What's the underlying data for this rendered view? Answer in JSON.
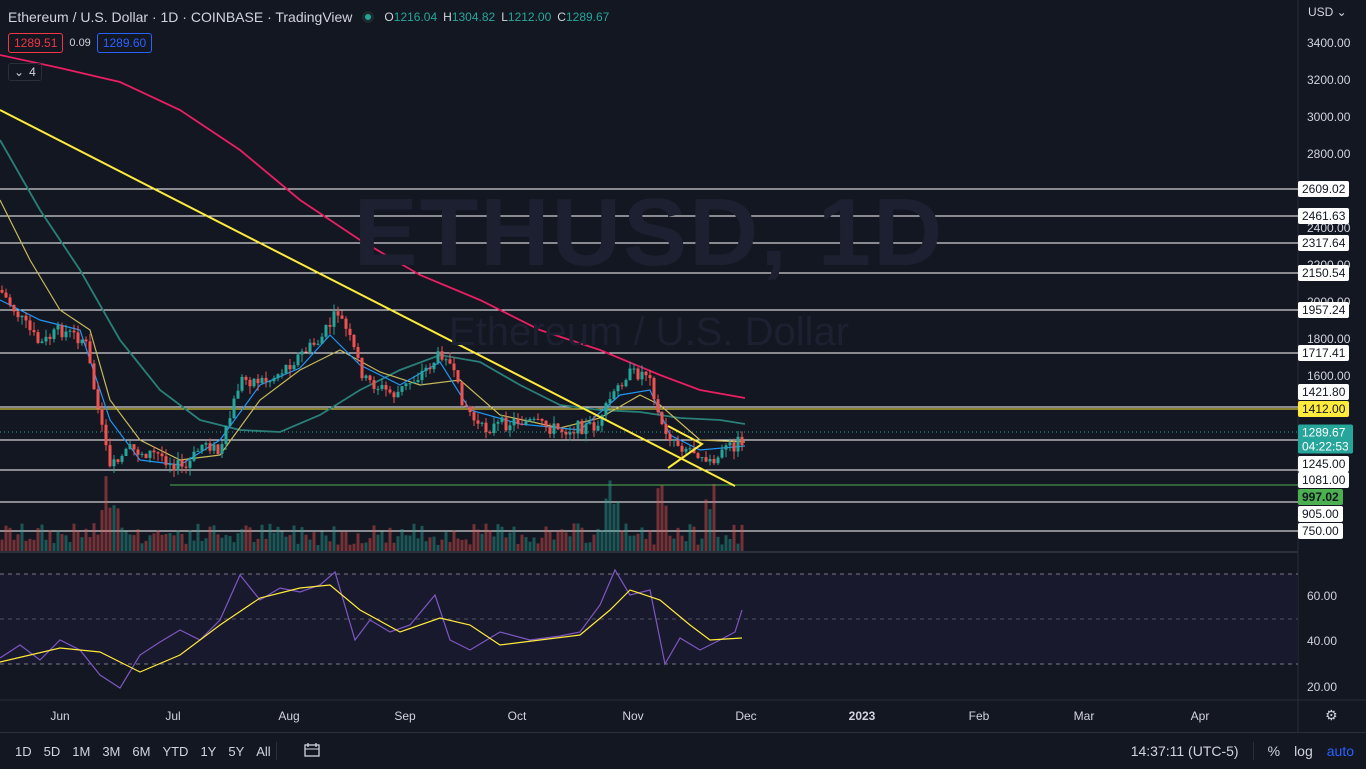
{
  "header": {
    "symbol_title": "Ethereum / U.S. Dollar · 1D · COINBASE · TradingView",
    "ohlc": [
      {
        "k": "O",
        "v": "1216.04"
      },
      {
        "k": "H",
        "v": "1304.82"
      },
      {
        "k": "L",
        "v": "1212.00"
      },
      {
        "k": "C",
        "v": "1289.67"
      }
    ]
  },
  "quote": {
    "sell": "1289.51",
    "spread": "0.09",
    "buy": "1289.60"
  },
  "indicators_toggle": {
    "count": "4"
  },
  "watermark": {
    "ticker": "ETHUSD, 1D",
    "name": "Ethereum / U.S. Dollar"
  },
  "price_axis": {
    "currency": "USD",
    "ticks": [
      "3400.00",
      "3200.00",
      "3000.00",
      "2800.00",
      "2400.00",
      "2200.00",
      "2000.00",
      "1800.00",
      "1600.00"
    ],
    "level_tags": [
      "2609.02",
      "2461.63",
      "2317.64",
      "2150.54",
      "1957.24",
      "1717.41",
      "1421.80",
      "1245.00",
      "1081.00",
      "905.00",
      "750.00"
    ],
    "highlight_tags": {
      "yellow": "1412.00",
      "green": "997.02"
    },
    "last_price": "1289.67",
    "countdown": "04:22:53"
  },
  "rsi_axis": {
    "ticks": [
      "60.00",
      "40.00",
      "20.00"
    ]
  },
  "time_axis": {
    "labels": [
      "Jun",
      "Jul",
      "Aug",
      "Sep",
      "Oct",
      "Nov",
      "Dec",
      "2023",
      "Feb",
      "Mar",
      "Apr"
    ]
  },
  "bottom_bar": {
    "timeframes": [
      "1D",
      "5D",
      "1M",
      "3M",
      "6M",
      "YTD",
      "1Y",
      "5Y",
      "All"
    ],
    "clock": "14:37:11 (UTC-5)",
    "percent": "%",
    "log": "log",
    "auto": "auto"
  },
  "colors": {
    "background": "#131722",
    "up": "#26a69a",
    "down": "#ef5350",
    "trendline": "#ffeb3b",
    "ma_slow": "#e91e63",
    "ma_mid": "#2a7f78",
    "ma_fast_blue": "#2196f3",
    "ma_fast_yellow": "#c8b95a",
    "rsi": "#7e57c2"
  },
  "chart_data": {
    "type": "line",
    "x": [
      "Jun",
      "Jul",
      "Aug",
      "Sep",
      "Oct",
      "Nov",
      "Dec"
    ],
    "series": [
      {
        "values": [
          1900,
          1100,
          1650,
          1700,
          1330,
          1550,
          1290
        ]
      }
    ],
    "ylim": [
      700,
      3500
    ],
    "log_scale": true,
    "grid": false
  }
}
